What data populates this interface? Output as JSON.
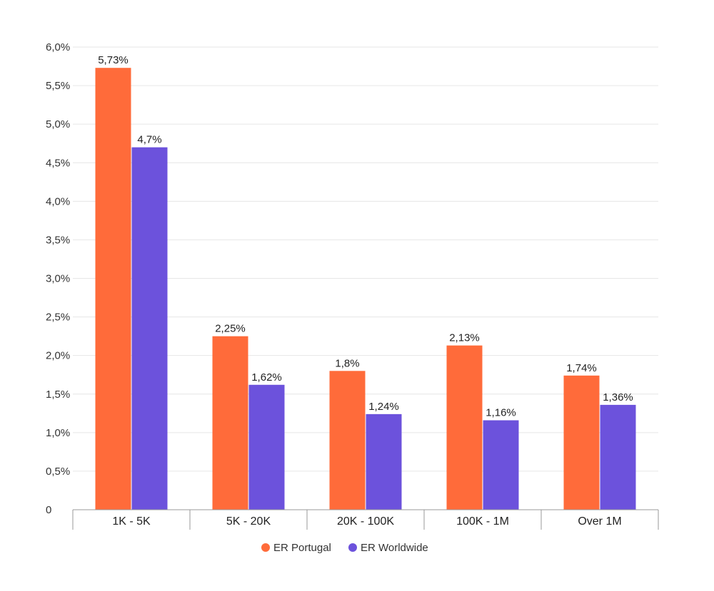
{
  "chart_data": {
    "type": "bar",
    "categories": [
      "1K - 5K",
      "5K - 20K",
      "20K - 100K",
      "100K - 1M",
      "Over 1M"
    ],
    "series": [
      {
        "name": "ER Portugal",
        "color": "#ff6b3a",
        "values": [
          5.73,
          2.25,
          1.8,
          2.13,
          1.74
        ],
        "labels": [
          "5,73%",
          "2,25%",
          "1,8%",
          "2,13%",
          "1,74%"
        ]
      },
      {
        "name": "ER Worldwide",
        "color": "#6c52dc",
        "values": [
          4.7,
          1.62,
          1.24,
          1.16,
          1.36
        ],
        "labels": [
          "4,7%",
          "1,62%",
          "1,24%",
          "1,16%",
          "1,36%"
        ]
      }
    ],
    "ylim": [
      0,
      6.0
    ],
    "yticks": [
      {
        "value": 0,
        "label": "0"
      },
      {
        "value": 0.5,
        "label": "0,5%"
      },
      {
        "value": 1.0,
        "label": "1,0%"
      },
      {
        "value": 1.5,
        "label": "1,5%"
      },
      {
        "value": 2.0,
        "label": "2,0%"
      },
      {
        "value": 2.5,
        "label": "2,5%"
      },
      {
        "value": 3.0,
        "label": "3,0%"
      },
      {
        "value": 3.5,
        "label": "3,5%"
      },
      {
        "value": 4.0,
        "label": "4,0%"
      },
      {
        "value": 4.5,
        "label": "4,5%"
      },
      {
        "value": 5.0,
        "label": "5,0%"
      },
      {
        "value": 5.5,
        "label": "5,5%"
      },
      {
        "value": 6.0,
        "label": "6,0%"
      }
    ],
    "grid": true,
    "legend_position": "bottom-center"
  }
}
